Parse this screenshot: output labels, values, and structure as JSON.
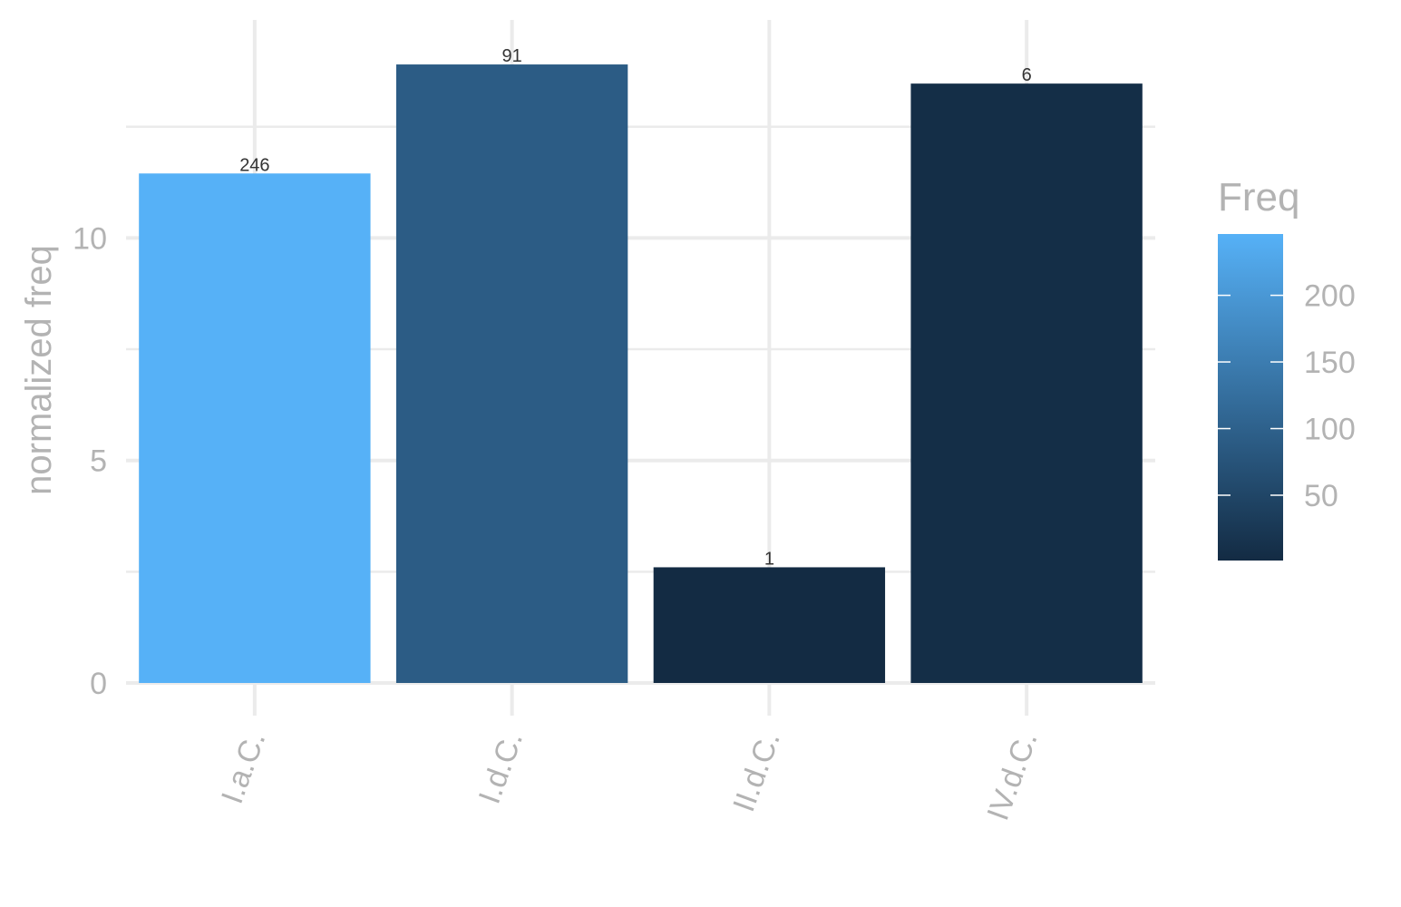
{
  "chart_data": {
    "type": "bar",
    "title": "",
    "xlabel": "",
    "ylabel": "normalized freq",
    "categories": [
      "I.a.C.",
      "I.d.C.",
      "II.d.C.",
      "IV.d.C."
    ],
    "values": [
      11.45,
      13.9,
      2.6,
      13.47
    ],
    "freq": [
      246,
      91,
      1,
      6
    ],
    "bar_labels": [
      "246",
      "91",
      "1",
      "6"
    ],
    "ylim": [
      0,
      14.9
    ],
    "yticks": [
      0,
      5,
      10
    ],
    "grid": true,
    "legend": {
      "title": "Freq",
      "position": "right",
      "labels": [
        "200",
        "150",
        "100",
        "50"
      ],
      "label_values": [
        200,
        150,
        100,
        50
      ],
      "range": [
        1,
        246
      ],
      "low_color": "#132B43",
      "high_color": "#56B1F7"
    }
  }
}
